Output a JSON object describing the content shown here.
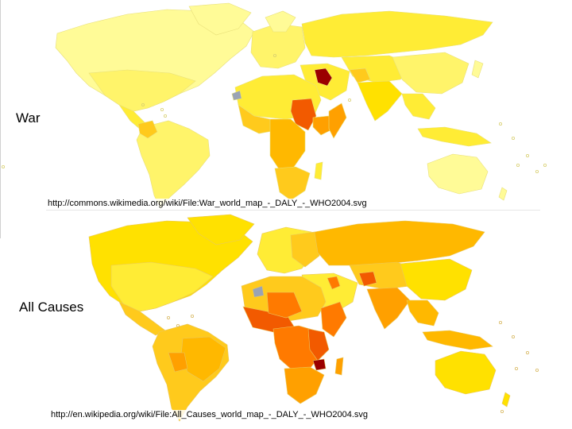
{
  "panels": {
    "war": {
      "label": "War",
      "source_url": "http://commons.wikimedia.org/wiki/File:War_world_map_-_DALY_-_WHO2004.svg"
    },
    "all_causes": {
      "label": "All Causes",
      "source_url": "http://en.wikipedia.org/wiki/File:All_Causes_world_map_-_DALY_-_WHO2004.svg"
    }
  },
  "colors": {
    "palest": "#fffb97",
    "pale": "#fff46a",
    "light": "#ffec35",
    "yellow": "#ffe100",
    "gold": "#ffca1c",
    "amber": "#ffb800",
    "orange": "#ffa000",
    "deep-orange": "#ff7a00",
    "red-orange": "#f25a00",
    "red": "#d72b00",
    "dark-red": "#9b0000",
    "no-data": "#9aa3b5",
    "ocean": "#ffffff",
    "coast": "#cfc770"
  }
}
